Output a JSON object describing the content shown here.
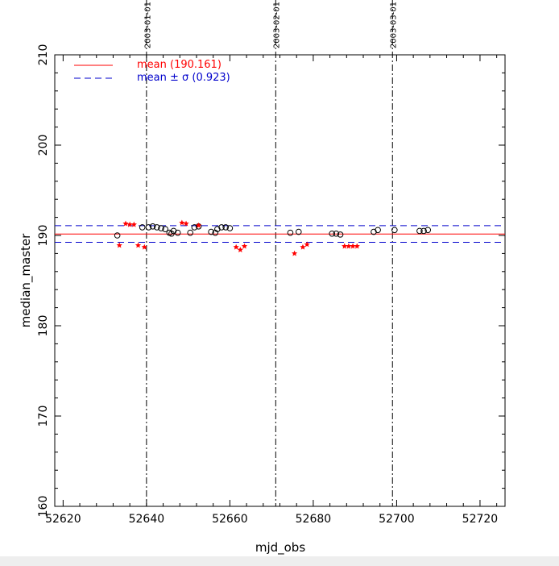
{
  "chart_data": {
    "type": "scatter",
    "xlabel": "mjd_obs",
    "ylabel": "median_master",
    "xlim": [
      52618,
      52726
    ],
    "ylim": [
      160,
      210
    ],
    "xticks": [
      52620,
      52640,
      52660,
      52680,
      52700,
      52720
    ],
    "yticks": [
      160,
      170,
      180,
      190,
      200,
      210
    ],
    "grid": false,
    "legend_position": "top-left",
    "legend": {
      "mean_label": "mean (190.161)",
      "sigma_label": "mean ± σ (0.923)"
    },
    "mean": 190.161,
    "sigma": 0.923,
    "date_markers": [
      {
        "label": "2003-01-01",
        "x": 52640
      },
      {
        "label": "2003-02-01",
        "x": 52671
      },
      {
        "label": "2003-03-01",
        "x": 52699
      }
    ],
    "series": [
      {
        "marker": "circle",
        "color": "#000000",
        "points": [
          [
            52633,
            190.0
          ],
          [
            52639,
            190.9
          ],
          [
            52640.5,
            190.9
          ],
          [
            52641.5,
            191.0
          ],
          [
            52642.5,
            190.9
          ],
          [
            52643.5,
            190.8
          ],
          [
            52644.5,
            190.7
          ],
          [
            52645.5,
            190.3
          ],
          [
            52646,
            190.2
          ],
          [
            52646.5,
            190.5
          ],
          [
            52647.5,
            190.3
          ],
          [
            52650.5,
            190.3
          ],
          [
            52651.5,
            190.9
          ],
          [
            52652.5,
            191.0
          ],
          [
            52655.5,
            190.4
          ],
          [
            52656.5,
            190.3
          ],
          [
            52657,
            190.7
          ],
          [
            52658,
            190.9
          ],
          [
            52659,
            190.9
          ],
          [
            52660,
            190.8
          ],
          [
            52674.5,
            190.3
          ],
          [
            52676.5,
            190.4
          ],
          [
            52684.5,
            190.2
          ],
          [
            52685.5,
            190.2
          ],
          [
            52686.5,
            190.1
          ],
          [
            52694.5,
            190.4
          ],
          [
            52695.5,
            190.6
          ],
          [
            52699.5,
            190.6
          ],
          [
            52705.5,
            190.5
          ],
          [
            52706.5,
            190.5
          ],
          [
            52707.5,
            190.6
          ]
        ]
      },
      {
        "marker": "star",
        "color": "#ff0000",
        "points": [
          [
            52633.5,
            188.9
          ],
          [
            52635,
            191.3
          ],
          [
            52636,
            191.2
          ],
          [
            52637,
            191.2
          ],
          [
            52638,
            188.9
          ],
          [
            52639.5,
            188.7
          ],
          [
            52648.5,
            191.4
          ],
          [
            52649.5,
            191.3
          ],
          [
            52652.5,
            191.1
          ],
          [
            52661.5,
            188.7
          ],
          [
            52662.5,
            188.4
          ],
          [
            52663.5,
            188.8
          ],
          [
            52675.5,
            188.0
          ],
          [
            52677.5,
            188.7
          ],
          [
            52678.5,
            189.0
          ],
          [
            52687.5,
            188.8
          ],
          [
            52688.5,
            188.8
          ],
          [
            52689.5,
            188.8
          ],
          [
            52690.5,
            188.8
          ]
        ]
      }
    ]
  }
}
